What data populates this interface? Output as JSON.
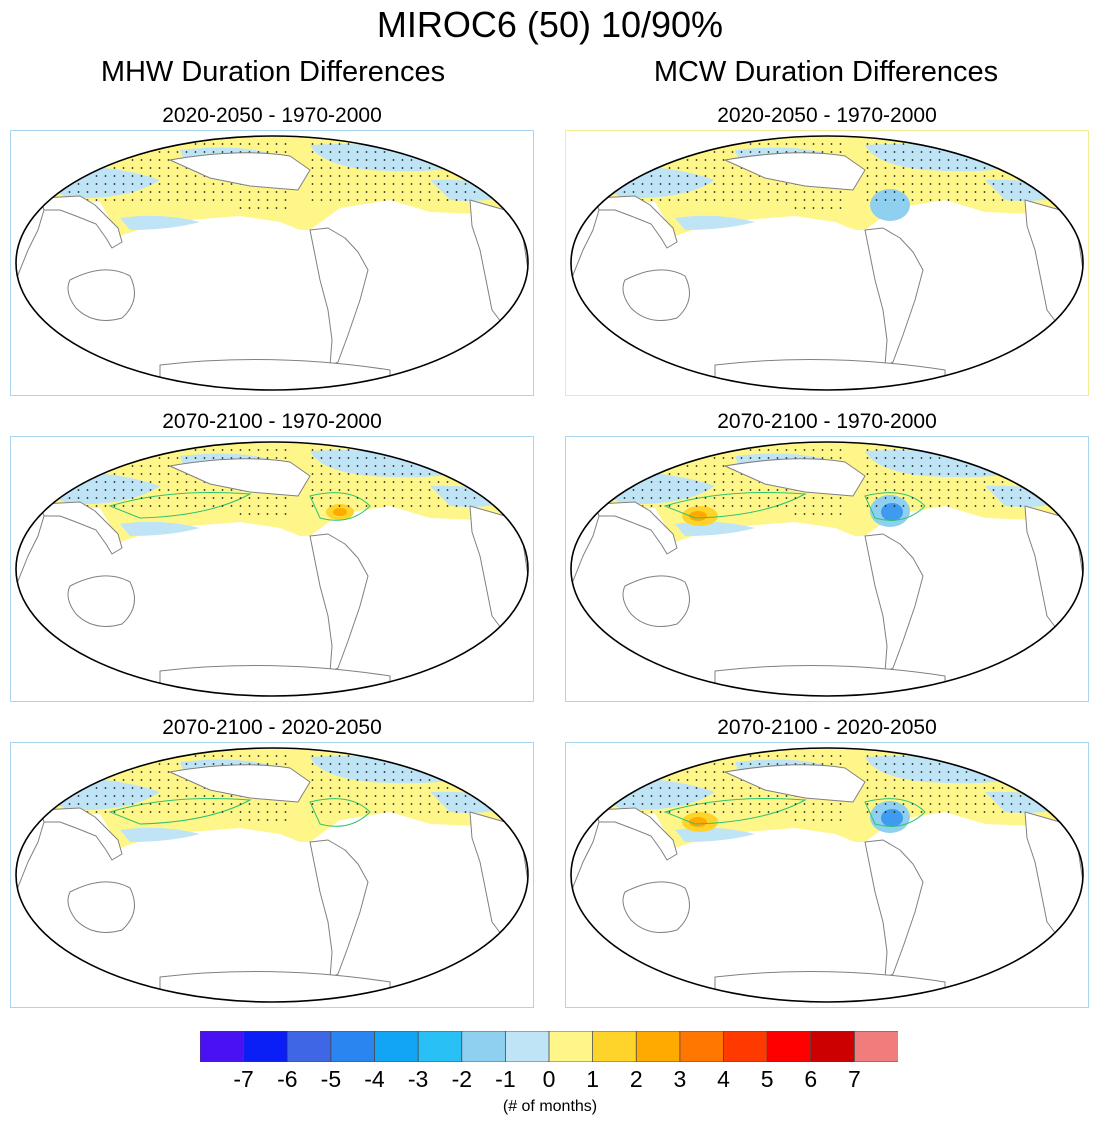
{
  "figure_title": "MIROC6 (50) 10/90%",
  "columns": [
    {
      "title": "MHW Duration Differences"
    },
    {
      "title": "MCW Duration Differences"
    }
  ],
  "panels": [
    {
      "title": "2020-2050 - 1970-2000",
      "variable": "MHW",
      "border": "#a9d6ee"
    },
    {
      "title": "2020-2050 - 1970-2000",
      "variable": "MCW",
      "border": "#f3eb8f"
    },
    {
      "title": "2070-2100 - 1970-2000",
      "variable": "MHW",
      "border": "#a9d6ee"
    },
    {
      "title": "2070-2100 - 1970-2000",
      "variable": "MCW",
      "border": "#a9d6ee"
    },
    {
      "title": "2070-2100 - 2020-2050",
      "variable": "MHW",
      "border": "#a9d6ee"
    },
    {
      "title": "2070-2100 - 2020-2050",
      "variable": "MCW",
      "border": "#a9d6ee"
    }
  ],
  "colorbar": {
    "units": "(# of months)",
    "labels": [
      "-7",
      "-6",
      "-5",
      "-4",
      "-3",
      "-2",
      "-1",
      "0",
      "1",
      "2",
      "3",
      "4",
      "5",
      "6",
      "7"
    ],
    "colors": [
      "#4a12f2",
      "#0a1ff5",
      "#3f66e4",
      "#2b85f0",
      "#12a5f5",
      "#28c0f5",
      "#8fcff0",
      "#bfe4f5",
      "#fff68a",
      "#ffd42a",
      "#ffaa00",
      "#ff7700",
      "#ff3a00",
      "#ff0000",
      "#cc0000",
      "#f07c7c"
    ]
  }
}
